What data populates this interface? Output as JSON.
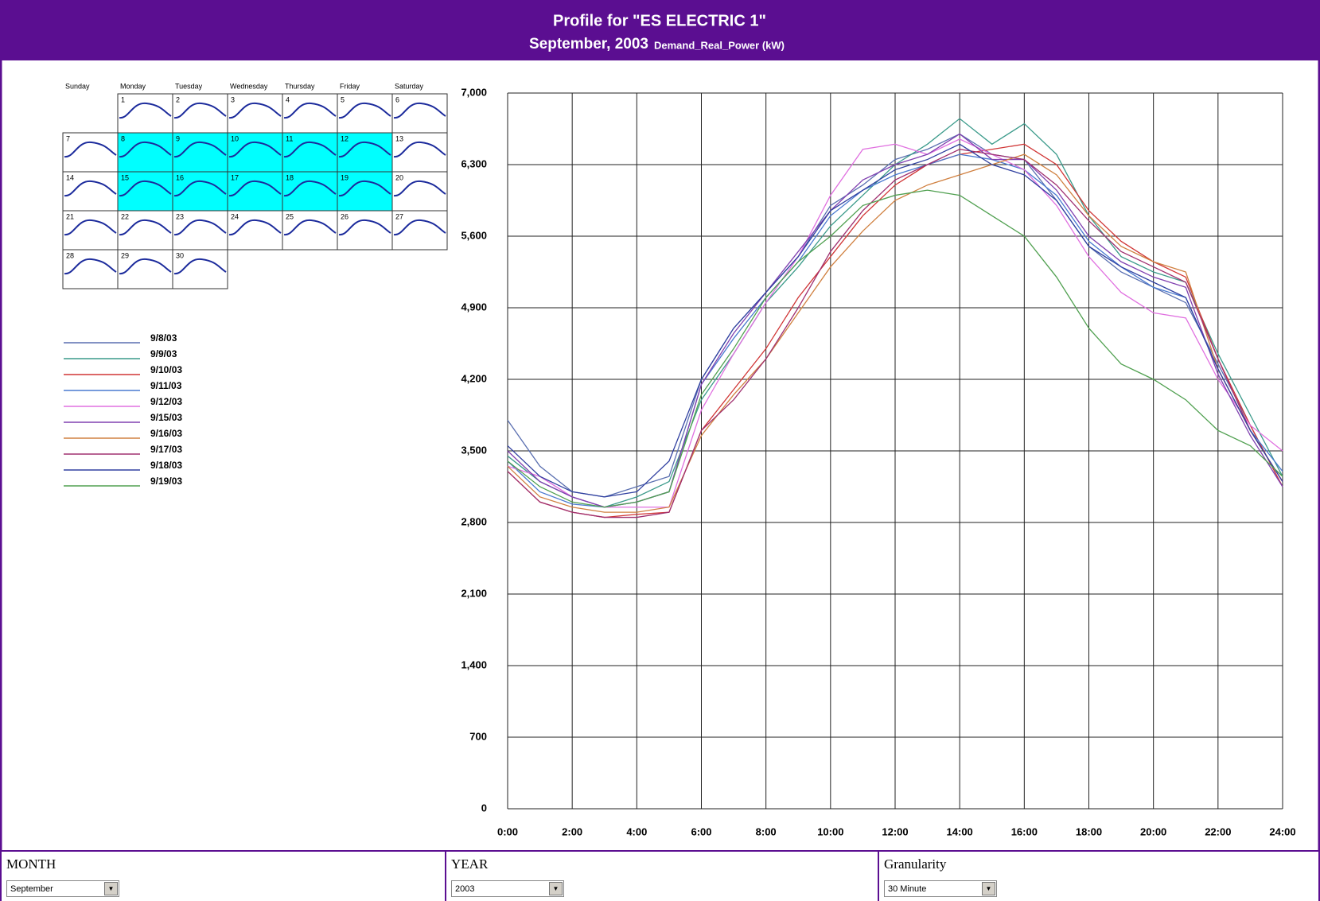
{
  "chart_data": {
    "type": "line",
    "title": "Profile for  \"ES ELECTRIC 1\"",
    "subtitle": "September, 2003",
    "y_label": "Demand_Real_Power (kW)",
    "x": [
      0,
      1,
      2,
      3,
      4,
      5,
      6,
      7,
      8,
      9,
      10,
      11,
      12,
      13,
      14,
      15,
      16,
      17,
      18,
      19,
      20,
      21,
      22,
      23,
      24
    ],
    "xlim": [
      0,
      24
    ],
    "xticks": [
      {
        "value": 0,
        "label": "0:00"
      },
      {
        "value": 2,
        "label": "2:00"
      },
      {
        "value": 4,
        "label": "4:00"
      },
      {
        "value": 6,
        "label": "6:00"
      },
      {
        "value": 8,
        "label": "8:00"
      },
      {
        "value": 10,
        "label": "10:00"
      },
      {
        "value": 12,
        "label": "12:00"
      },
      {
        "value": 14,
        "label": "14:00"
      },
      {
        "value": 16,
        "label": "16:00"
      },
      {
        "value": 18,
        "label": "18:00"
      },
      {
        "value": 20,
        "label": "20:00"
      },
      {
        "value": 22,
        "label": "22:00"
      },
      {
        "value": 24,
        "label": "24:00"
      }
    ],
    "ylim": [
      0,
      7000
    ],
    "yticks": [
      0,
      700,
      {
        "value": 1400,
        "label": "1,400"
      },
      {
        "value": 2100,
        "label": "2,100"
      },
      {
        "value": 2800,
        "label": "2,800"
      },
      {
        "value": 3500,
        "label": "3,500"
      },
      {
        "value": 4200,
        "label": "4,200"
      },
      {
        "value": 4900,
        "label": "4,900"
      },
      {
        "value": 5600,
        "label": "5,600"
      },
      {
        "value": 6300,
        "label": "6,300"
      },
      {
        "value": 7000,
        "label": "7,000"
      }
    ],
    "grid": true,
    "series": [
      {
        "name": "9/8/03",
        "color": "#5a6fb0",
        "values": [
          3800,
          3350,
          3100,
          3050,
          3150,
          3250,
          4200,
          4700,
          5050,
          5400,
          5900,
          6100,
          6350,
          6450,
          6600,
          6400,
          6350,
          5950,
          5500,
          5250,
          5100,
          4950,
          4350,
          3750,
          3150
        ]
      },
      {
        "name": "9/9/03",
        "color": "#3a9a8a",
        "values": [
          3450,
          3200,
          3050,
          2950,
          3050,
          3200,
          4000,
          4450,
          4950,
          5300,
          5700,
          6000,
          6300,
          6500,
          6750,
          6500,
          6700,
          6400,
          5800,
          5400,
          5250,
          5150,
          4450,
          3850,
          3250
        ]
      },
      {
        "name": "9/10/03",
        "color": "#d03535",
        "values": [
          3300,
          3000,
          2900,
          2850,
          2880,
          2900,
          3700,
          4100,
          4500,
          5000,
          5400,
          5800,
          6100,
          6300,
          6400,
          6450,
          6500,
          6300,
          5850,
          5550,
          5350,
          5200,
          4400,
          3750,
          3150
        ]
      },
      {
        "name": "9/11/03",
        "color": "#4a7ad0",
        "values": [
          3400,
          3100,
          2980,
          2950,
          3000,
          3100,
          4150,
          4600,
          5000,
          5350,
          5800,
          6050,
          6200,
          6300,
          6400,
          6350,
          6250,
          6000,
          5550,
          5300,
          5100,
          5000,
          4300,
          3700,
          3300
        ]
      },
      {
        "name": "9/12/03",
        "color": "#e070e0",
        "values": [
          3350,
          3250,
          3050,
          2950,
          2950,
          2950,
          3900,
          4450,
          4950,
          5400,
          6000,
          6450,
          6500,
          6400,
          6550,
          6400,
          6250,
          5900,
          5400,
          5050,
          4850,
          4800,
          4200,
          3750,
          3500
        ]
      },
      {
        "name": "9/15/03",
        "color": "#8040b0",
        "values": [
          3500,
          3200,
          3050,
          2950,
          3000,
          3100,
          4150,
          4650,
          5050,
          5450,
          5850,
          6150,
          6300,
          6400,
          6600,
          6350,
          6350,
          6050,
          5600,
          5350,
          5200,
          5100,
          4250,
          3650,
          3150
        ]
      },
      {
        "name": "9/16/03",
        "color": "#d08040",
        "values": [
          3350,
          3050,
          2950,
          2900,
          2900,
          2950,
          3650,
          4050,
          4400,
          4850,
          5300,
          5650,
          5950,
          6100,
          6200,
          6300,
          6400,
          6200,
          5800,
          5500,
          5350,
          5250,
          4300,
          3700,
          3200
        ]
      },
      {
        "name": "9/17/03",
        "color": "#a03070",
        "values": [
          3300,
          3000,
          2900,
          2850,
          2850,
          2900,
          3700,
          4000,
          4400,
          4900,
          5450,
          5850,
          6150,
          6300,
          6450,
          6400,
          6350,
          6100,
          5750,
          5450,
          5300,
          5150,
          4400,
          3700,
          3200
        ]
      },
      {
        "name": "9/18/03",
        "color": "#3040a0",
        "values": [
          3550,
          3250,
          3100,
          3050,
          3100,
          3400,
          4200,
          4700,
          5050,
          5400,
          5850,
          6050,
          6250,
          6350,
          6500,
          6300,
          6200,
          5950,
          5500,
          5300,
          5150,
          5000,
          4300,
          3700,
          3200
        ]
      },
      {
        "name": "9/19/03",
        "color": "#50a050",
        "values": [
          3400,
          3150,
          3000,
          2950,
          3000,
          3100,
          4050,
          4500,
          5000,
          5350,
          5600,
          5900,
          6000,
          6050,
          6000,
          5800,
          5600,
          5200,
          4700,
          4350,
          4200,
          4000,
          3700,
          3550,
          3250
        ]
      }
    ]
  },
  "calendar": {
    "day_names": [
      "Sunday",
      "Monday",
      "Tuesday",
      "Wednesday",
      "Thursday",
      "Friday",
      "Saturday"
    ],
    "weeks": [
      [
        "1",
        "2",
        "3",
        "4",
        "5",
        "6"
      ],
      [
        "7",
        "8",
        "9",
        "10",
        "11",
        "12",
        "13"
      ],
      [
        "14",
        "15",
        "16",
        "17",
        "18",
        "19",
        "20"
      ],
      [
        "21",
        "22",
        "23",
        "24",
        "25",
        "26",
        "27"
      ],
      [
        "28",
        "29",
        "30"
      ]
    ],
    "selected_days": [
      "8",
      "9",
      "10",
      "11",
      "12",
      "15",
      "16",
      "17",
      "18",
      "19"
    ]
  },
  "controls": [
    {
      "label": "MONTH",
      "value": "September"
    },
    {
      "label": "YEAR",
      "value": "2003"
    },
    {
      "label": "Granularity",
      "value": "30 Minute"
    }
  ]
}
